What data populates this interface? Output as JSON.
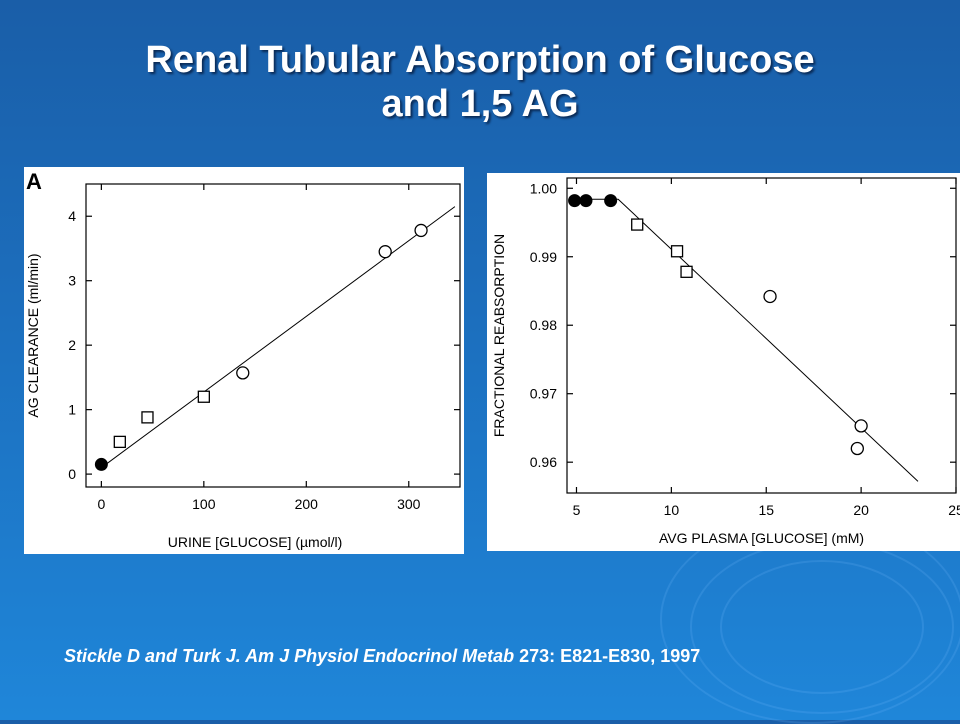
{
  "slide": {
    "title_line1": "Renal Tubular Absorption of Glucose",
    "title_line2": "and 1,5 AG",
    "citation_italic": "Stickle D and Turk J. Am J Physiol Endocrinol Metab",
    "citation_rest": " 273: E821-E830, 1997",
    "background_color": "#1c6fbe",
    "title_color": "#ffffff"
  },
  "chart_data": [
    {
      "type": "scatter",
      "panel_label": "A",
      "title": "",
      "xlabel": "URINE [GLUCOSE] (µmol/l)",
      "ylabel": "AG CLEARANCE (ml/min)",
      "xlim": [
        -15,
        350
      ],
      "ylim": [
        -0.2,
        4.5
      ],
      "xticks": [
        0,
        100,
        200,
        300
      ],
      "yticks": [
        0,
        1,
        2,
        3,
        4
      ],
      "grid": false,
      "legend": "none",
      "series": [
        {
          "marker": "filled-circle",
          "points": [
            [
              0,
              0.15
            ]
          ]
        },
        {
          "marker": "square",
          "points": [
            [
              18,
              0.5
            ],
            [
              45,
              0.88
            ],
            [
              100,
              1.2
            ]
          ]
        },
        {
          "marker": "open-circle",
          "points": [
            [
              138,
              1.57
            ],
            [
              277,
              3.45
            ],
            [
              312,
              3.78
            ]
          ]
        }
      ],
      "fit_line": [
        [
          0,
          0.1
        ],
        [
          345,
          4.15
        ]
      ]
    },
    {
      "type": "scatter",
      "panel_label": "",
      "title": "",
      "xlabel": "AVG PLASMA [GLUCOSE] (mM)",
      "ylabel": "FRACTIONAL REABSORPTION",
      "xlim": [
        4.5,
        25
      ],
      "ylim": [
        0.9555,
        1.0015
      ],
      "xticks": [
        5,
        10,
        15,
        20,
        25
      ],
      "yticks": [
        0.96,
        0.97,
        0.98,
        0.99,
        1.0
      ],
      "ytick_labels": [
        "0.96",
        "0.97",
        "0.98",
        "0.99",
        "1.00"
      ],
      "grid": false,
      "legend": "none",
      "series": [
        {
          "marker": "filled-circle",
          "points": [
            [
              4.9,
              0.9982
            ],
            [
              5.5,
              0.9982
            ],
            [
              6.8,
              0.9982
            ]
          ]
        },
        {
          "marker": "square",
          "points": [
            [
              8.2,
              0.9947
            ],
            [
              10.3,
              0.9908
            ],
            [
              10.8,
              0.9878
            ]
          ]
        },
        {
          "marker": "open-circle",
          "points": [
            [
              15.2,
              0.9842
            ],
            [
              20.0,
              0.9653
            ],
            [
              19.8,
              0.962
            ]
          ]
        }
      ],
      "fit_line": [
        [
          4.9,
          0.9984
        ],
        [
          7.2,
          0.9984
        ],
        [
          23.0,
          0.9572
        ]
      ]
    }
  ]
}
